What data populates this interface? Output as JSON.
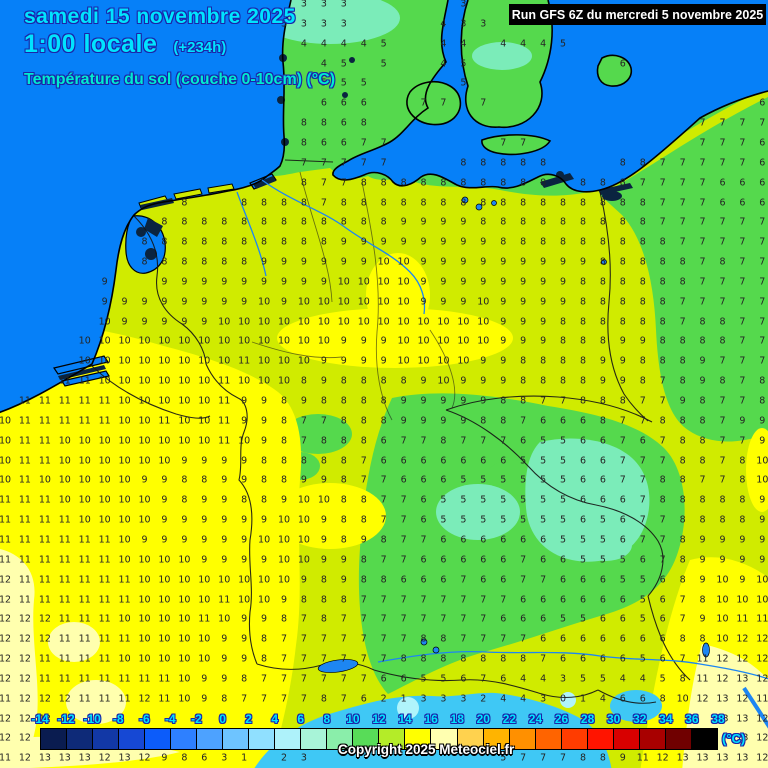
{
  "header": {
    "date_line": "samedi 15 novembre 2025",
    "time_line": "1:00 locale",
    "offset": "(+234h)",
    "param_line": "Température du sol (couche 0-10cm) (°C)",
    "run_info": "Run GFS 6Z du mercredi 5 novembre 2025"
  },
  "footer": {
    "copyright": "Copyright 2025 Meteociel.fr",
    "unit_label": "(°C)"
  },
  "colorbar": {
    "labels": [
      "-14",
      "-12",
      "-10",
      "-8",
      "-6",
      "-4",
      "-2",
      "0",
      "2",
      "4",
      "6",
      "8",
      "10",
      "12",
      "14",
      "16",
      "18",
      "20",
      "22",
      "24",
      "26",
      "28",
      "30",
      "32",
      "34",
      "36",
      "38"
    ],
    "colors": [
      "#0a1c50",
      "#0e2a78",
      "#1238a6",
      "#1648d4",
      "#0c5cfa",
      "#2e80ff",
      "#4da2ff",
      "#6ec4ff",
      "#90e0ff",
      "#aef2fa",
      "#a8f4d8",
      "#8aeeaa",
      "#58dc58",
      "#b4ec28",
      "#ffff00",
      "#ffffb0",
      "#ffd24e",
      "#ffb400",
      "#ff9000",
      "#ff6400",
      "#ff3c00",
      "#ff1400",
      "#d80000",
      "#a80000",
      "#700000",
      "#000000"
    ]
  },
  "map_colors": {
    "sea": "#0680f8",
    "shallow_dark": "#0a2440",
    "land_8_9": "#d0eb00",
    "yellow_10_11": "#ffff00",
    "pale_yellow_12_13": "#ffffae",
    "green_6_7": "#55d94d",
    "mint_4_5": "#7becb9",
    "cyan_1_3": "#3fc8f5",
    "pale_cyan_0": "#b0f4fb"
  },
  "grid": {
    "rows": [
      ". . . . . . . . . . . . . . . 3 3 3 . . . . . 3 . . . . . . . . . . . . . . .",
      ". . . . . . . . . . . . . . 3 3 3 3 . . . . 4 3 3 . . . . . . . . . . . . . .",
      ". . . . . . . . . . . . . . . 4 4 4 4 5 . . 4 4 . 4 4 4 5 . . . . . . . . . .",
      ". . . . . . . . . . . . . . . . 4 5 . 5 . . 4 5 . . . . . . . 6 . . . . . . .",
      ". . . . . . . . . . . . . . . . 5 5 5 . . . . 5 . . . . . . . . . . . . . . .",
      ". . . . . . . . . . . . . . . . 6 6 6 . . 7 7 . 7 . . . . . . . . . . . . . 6",
      ". . . . . . . . . . . . . . . 8 8 6 8 . . . . . . . . . . . . . . . . 7 7 7 7",
      ". . . . . . . . . . . . . . . 8 6 6 7 7 . . . . . 7 7 . . . . . . . . 7 7 7 6",
      ". . . . . . . . . . . . . . . 7 7 7 7 7 . . . 8 8 8 8 8 . . . 8 8 7 7 7 7 7 6",
      ". . . . . . . . . . . . . . . 8 7 7 8 8 8 8 8 8 8 8 8 8 . 8 8 8 7 7 7 7 6 6 6",
      ". . . . . . . . . 8 . . 8 8 8 8 7 8 8 8 8 8 8 8 8 8 8 8 8 8 8 8 8 7 7 7 6 6 6",
      ". . . . . . . . 8 8 8 8 8 8 8 8 8 8 8 8 9 9 9 9 8 8 8 8 8 8 8 8 8 7 7 7 7 7 7",
      ". . . . . . . 8 8 8 8 8 8 8 8 8 8 9 9 9 9 9 9 9 9 8 8 8 8 8 8 8 8 8 7 7 7 7 7",
      ". . . . . . . 8 8 8 8 8 8 9 9 9 9 9 9 10 10 9 9 9 9 9 9 9 9 9 8 8 8 8 8 7 8 7 7",
      ". . . . . 9 . . 9 9 9 9 9 9 9 9 9 10 10 10 10 9 9 9 9 9 9 9 9 8 8 8 8 8 8 7 7 7 7",
      ". . . . . 9 9 9 9 9 9 9 9 10 9 10 10 10 10 10 10 9 9 9 10 9 9 9 9 8 8 8 8 8 7 7 7 7 7",
      ". . . . . 10 9 9 9 9 9 10 10 10 10 10 10 10 10 10 10 10 10 10 10 9 9 9 8 8 8 8 8 8 7 8 8 7 7",
      ". . . . 10 10 10 10 10 10 10 10 10 10 10 10 10 9 9 9 10 10 10 10 10 9 9 9 8 8 8 9 9 8 8 8 8 7 7",
      ". . . . 10 10 10 10 10 10 10 10 11 10 10 10 9 9 9 9 10 10 10 10 9 9 8 8 8 8 9 9 8 8 8 9 7 7 7",
      ". . . 11 11 10 10 10 10 10 10 11 10 10 10 8 9 8 8 8 8 9 10 9 9 9 8 8 8 8 9 9 8 7 8 9 8 7 8",
      ". 11 11 11 11 11 10 10 10 10 10 11 9 9 8 9 8 8 8 8 9 9 9 9 9 8 8 7 7 8 8 8 7 7 9 8 7 7 8",
      "10 11 11 11 11 11 10 10 11 10 10 11 9 9 8 7 7 8 8 8 9 9 9 9 8 8 7 6 6 6 8 7 7 8 8 8 7 9 9",
      "10 11 11 10 10 10 10 10 10 10 10 11 10 9 8 7 8 8 8 6 7 7 8 7 7 7 6 5 5 6 6 7 6 7 8 8 7 7 9",
      "10 11 11 10 10 10 10 10 10 9 9 9 9 8 8 8 8 8 7 6 6 6 6 6 6 6 5 5 5 6 6 7 7 7 8 8 7 8 10",
      "10 11 10 10 10 10 10 9 9 8 8 9 9 8 8 9 9 8 7 7 6 6 6 5 5 5 5 5 5 6 6 7 7 8 8 7 7 8 10",
      "11 11 11 10 10 10 10 10 9 8 9 9 8 8 9 10 10 8 8 7 7 6 5 5 5 5 5 5 5 6 6 6 7 8 8 8 8 8 9",
      "11 11 11 11 10 10 10 10 9 9 9 9 9 9 10 10 9 8 8 7 7 6 5 5 5 5 5 5 5 6 5 6 7 7 8 8 8 8 9",
      "11 11 11 11 11 11 10 9 9 9 9 9 9 10 10 10 9 8 9 8 7 7 6 6 6 6 6 6 5 5 5 6 7 7 8 9 9 9 9",
      "11 11 11 11 11 11 10 10 10 10 9 9 9 9 10 10 9 9 8 7 7 6 6 6 6 6 7 6 6 5 5 5 6 7 8 9 9 9 9",
      "12 11 11 11 11 11 11 10 10 10 10 10 10 10 10 9 8 9 8 8 6 6 6 7 6 6 7 7 6 6 6 5 5 6 8 9 10 9 10",
      "12 11 11 11 11 11 11 10 10 10 10 11 10 10 9 8 8 8 7 7 7 7 7 7 7 7 6 6 6 6 6 6 5 6 7 8 10 10 10",
      "12 12 12 11 11 11 10 10 10 10 11 10 9 9 8 7 8 7 7 7 7 7 7 7 7 6 6 6 5 5 6 6 5 6 7 9 10 11 11",
      "12 12 12 11 11 11 11 10 10 10 10 9 9 8 7 7 7 7 7 7 7 8 8 7 7 7 7 6 6 6 6 6 6 6 8 8 10 12 12",
      "12 12 11 11 11 11 10 10 10 10 10 9 9 8 7 7 7 7 7 7 8 8 8 8 8 8 8 7 6 6 6 6 5 6 7 11 12 12 12",
      "12 12 11 11 11 11 11 11 11 10 9 9 8 7 7 7 7 7 7 6 6 5 5 6 7 6 4 4 3 5 5 4 4 5 8 11 12 13 12",
      "11 12 12 12 11 11 11 12 11 10 9 8 7 7 7 7 8 7 6 2 1 3 3 3 2 4 4 3 0 1 4 6 6 8 10 12 13 12 11",
      "12 12 12 . . . . . . . . . . . . . . . . . . . . . . . . . . . . . . . . . 13 13 12",
      "12 12 . . . . . . . . . . . . . . . . . . . . . . . . . . . . . . . . . . . 13 12",
      "11 12 13 13 13 12 13 12 9 8 6 3 1 . 2 3 . . . . . . . . . 5 7 7 7 8 8 9 11 12 13 13 13 13 12"
    ]
  }
}
